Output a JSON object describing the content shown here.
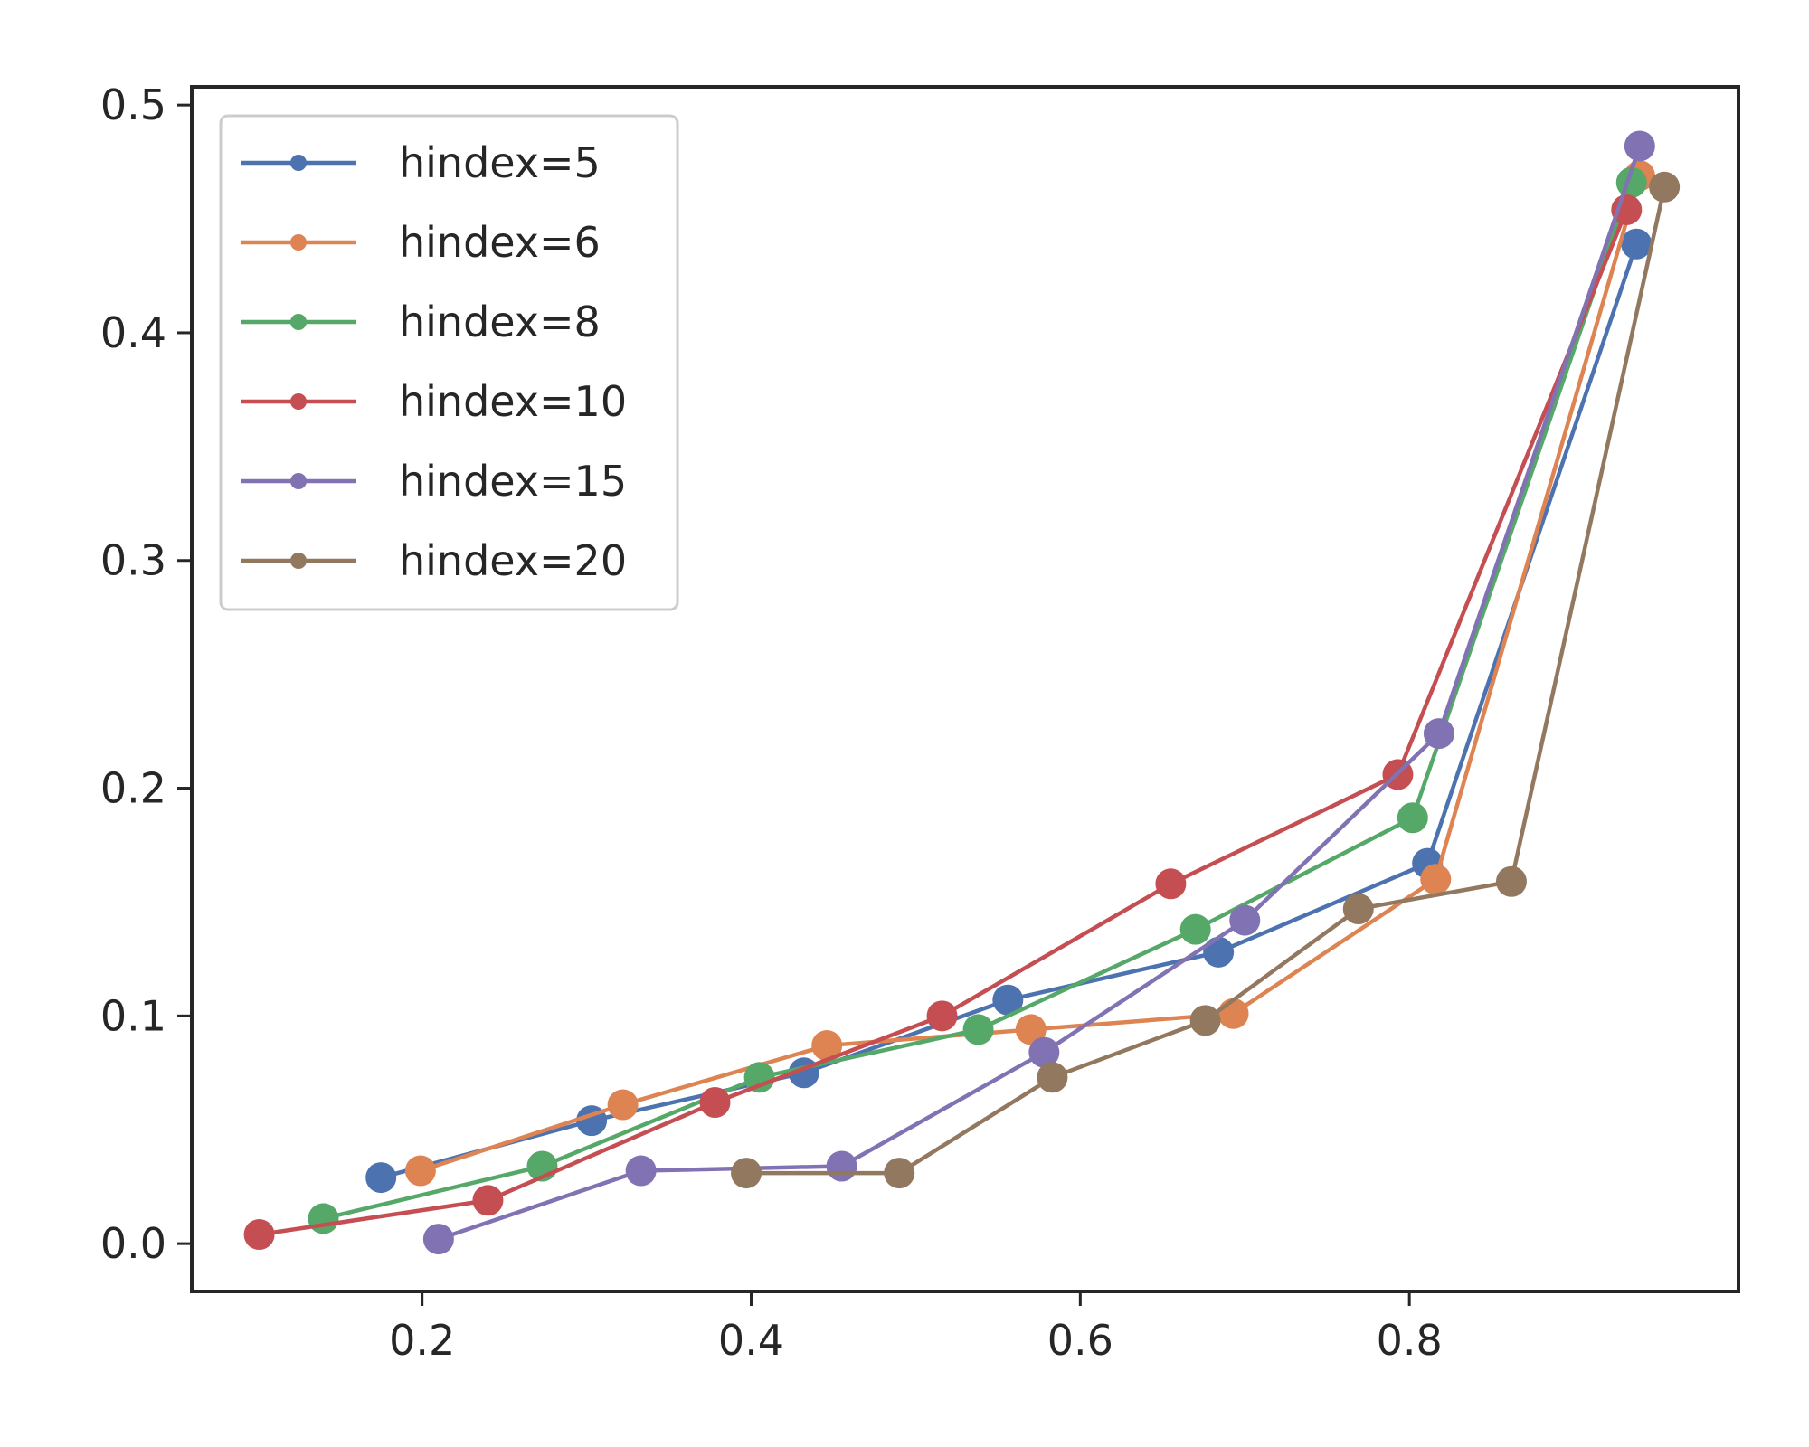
{
  "chart_data": {
    "type": "line",
    "title": "",
    "xlabel": "",
    "ylabel": "",
    "xlim": [
      0.06,
      1.0
    ],
    "ylim": [
      -0.021,
      0.508
    ],
    "x_ticks": [
      "0.2",
      "0.4",
      "0.6",
      "0.8"
    ],
    "y_ticks": [
      "0.0",
      "0.1",
      "0.2",
      "0.3",
      "0.4",
      "0.5"
    ],
    "grid": false,
    "legend_position": "upper-left",
    "series": [
      {
        "name": "hindex=5",
        "color": "#4c72b0",
        "x": [
          0.175,
          0.303,
          0.432,
          0.556,
          0.684,
          0.811,
          0.938
        ],
        "y": [
          0.029,
          0.054,
          0.075,
          0.107,
          0.128,
          0.167,
          0.439
        ]
      },
      {
        "name": "hindex=6",
        "color": "#dd8452",
        "x": [
          0.199,
          0.322,
          0.446,
          0.57,
          0.693,
          0.816,
          0.94
        ],
        "y": [
          0.032,
          0.061,
          0.087,
          0.094,
          0.101,
          0.16,
          0.469
        ]
      },
      {
        "name": "hindex=8",
        "color": "#55a868",
        "x": [
          0.14,
          0.273,
          0.405,
          0.538,
          0.67,
          0.802,
          0.935
        ],
        "y": [
          0.011,
          0.034,
          0.073,
          0.094,
          0.138,
          0.187,
          0.466
        ]
      },
      {
        "name": "hindex=10",
        "color": "#c44e52",
        "x": [
          0.101,
          0.24,
          0.378,
          0.516,
          0.655,
          0.793,
          0.932
        ],
        "y": [
          0.004,
          0.019,
          0.062,
          0.1,
          0.158,
          0.206,
          0.454
        ]
      },
      {
        "name": "hindex=15",
        "color": "#8172b3",
        "x": [
          0.21,
          0.333,
          0.455,
          0.578,
          0.7,
          0.818,
          0.94
        ],
        "y": [
          0.002,
          0.032,
          0.034,
          0.084,
          0.142,
          0.224,
          0.482
        ]
      },
      {
        "name": "hindex=20",
        "color": "#937860",
        "x": [
          0.397,
          0.49,
          0.583,
          0.676,
          0.769,
          0.862,
          0.955
        ],
        "y": [
          0.031,
          0.031,
          0.073,
          0.098,
          0.147,
          0.159,
          0.464
        ]
      }
    ]
  }
}
